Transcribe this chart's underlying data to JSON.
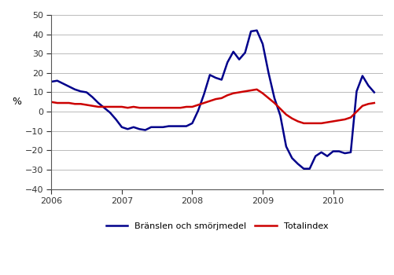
{
  "title": "",
  "ylabel": "%",
  "ylim": [
    -40,
    50
  ],
  "yticks": [
    -40,
    -30,
    -20,
    -10,
    0,
    10,
    20,
    30,
    40,
    50
  ],
  "xlim_start": 2006.0,
  "xlim_end": 2010.708,
  "xtick_years": [
    2006,
    2007,
    2008,
    2009,
    2010
  ],
  "legend_labels": [
    "Bränslen och smörjmedel",
    "Totalindex"
  ],
  "line1_color": "#00008B",
  "line2_color": "#CC0000",
  "background_color": "#ffffff",
  "grid_color": "#b0b0b0",
  "line_width": 1.8,
  "branslen": [
    15.5,
    16.0,
    14.5,
    13.0,
    11.5,
    10.5,
    10.0,
    7.5,
    4.5,
    2.0,
    -0.5,
    -4.0,
    -8.0,
    -9.0,
    -8.0,
    -9.0,
    -9.5,
    -8.0,
    -8.0,
    -8.0,
    -7.5,
    -7.5,
    -7.5,
    -7.5,
    -6.0,
    0.5,
    9.0,
    19.0,
    17.5,
    16.5,
    25.5,
    31.0,
    27.0,
    30.5,
    41.5,
    42.0,
    35.0,
    20.0,
    7.0,
    -2.0,
    -18.0,
    -24.0,
    -27.0,
    -29.5,
    -29.5,
    -23.0,
    -21.0,
    -23.0,
    -20.5,
    -20.5,
    -21.5,
    -21.0,
    10.5,
    18.5,
    13.5,
    10.0
  ],
  "totalindex": [
    5.0,
    4.5,
    4.5,
    4.5,
    4.0,
    4.0,
    3.5,
    3.0,
    2.5,
    2.5,
    2.5,
    2.5,
    2.5,
    2.0,
    2.5,
    2.0,
    2.0,
    2.0,
    2.0,
    2.0,
    2.0,
    2.0,
    2.0,
    2.5,
    2.5,
    3.5,
    4.5,
    5.5,
    6.5,
    7.0,
    8.5,
    9.5,
    10.0,
    10.5,
    11.0,
    11.5,
    9.5,
    7.0,
    4.5,
    1.5,
    -1.5,
    -3.5,
    -5.0,
    -6.0,
    -6.0,
    -6.0,
    -6.0,
    -5.5,
    -5.0,
    -4.5,
    -4.0,
    -3.0,
    0.0,
    3.0,
    4.0,
    4.5
  ]
}
